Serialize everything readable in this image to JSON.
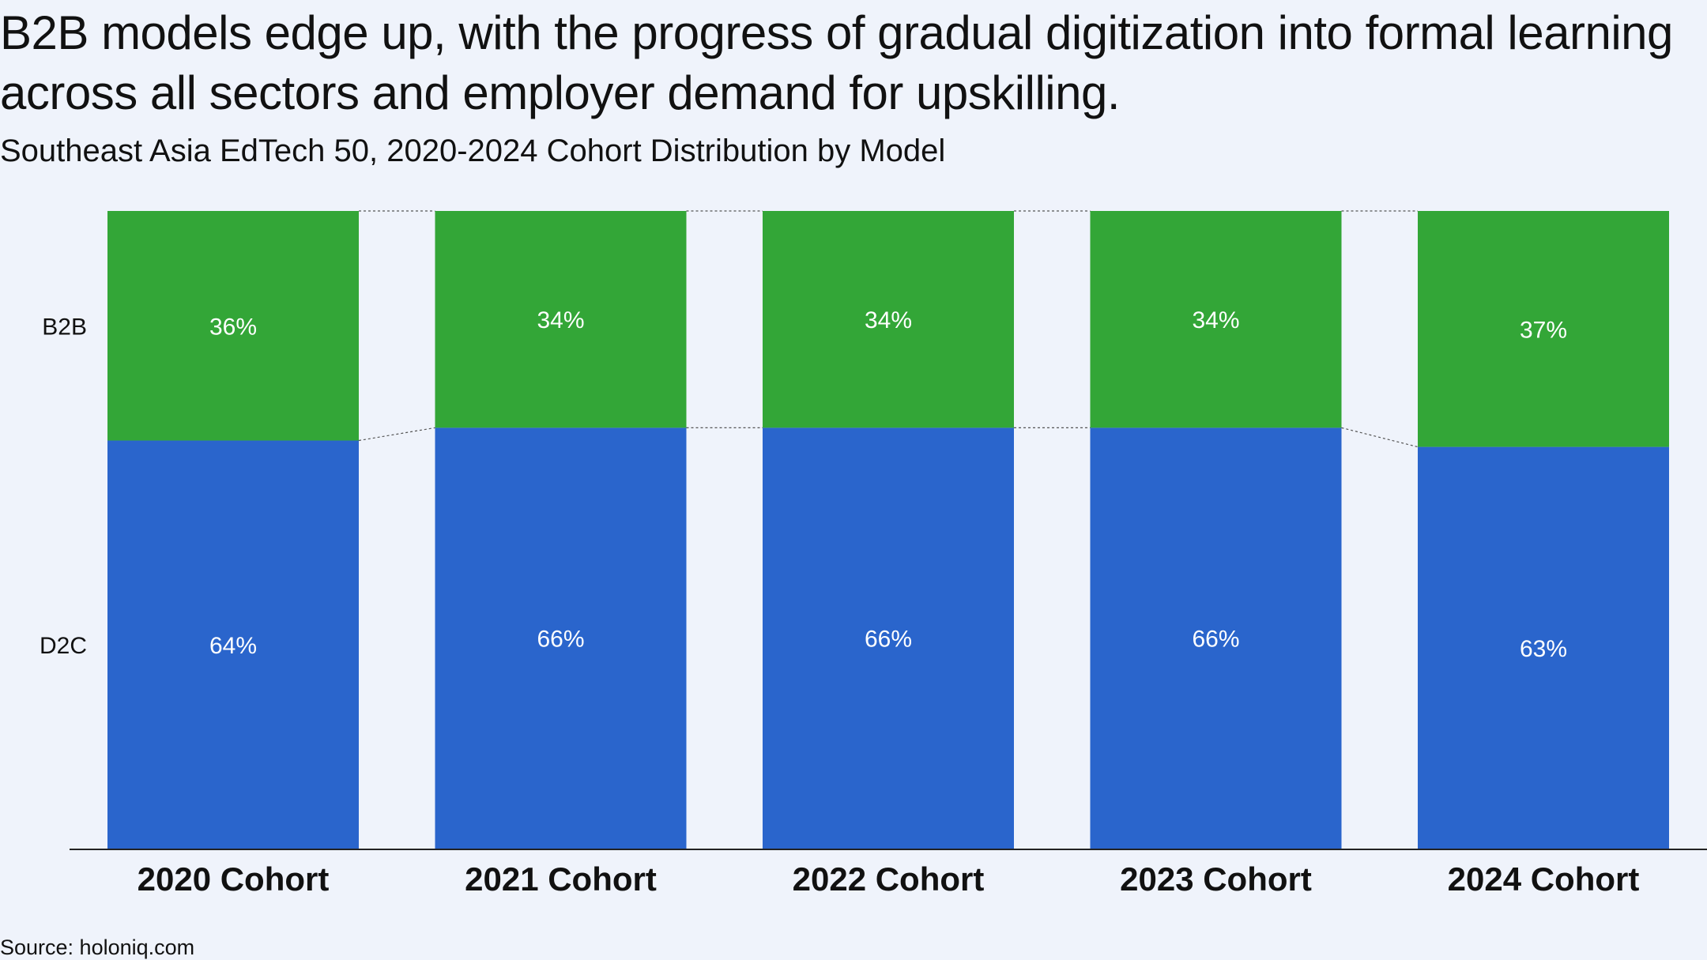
{
  "title": "B2B models edge up, with the progress of gradual digitization into formal learning across all sectors and employer demand for upskilling.",
  "subtitle": "Southeast Asia EdTech 50, 2020-2024 Cohort Distribution by Model",
  "source": "Source: holoniq.com",
  "chart_data": {
    "type": "bar",
    "stacked": true,
    "normalized": true,
    "categories": [
      "2020 Cohort",
      "2021 Cohort",
      "2022 Cohort",
      "2023 Cohort",
      "2024 Cohort"
    ],
    "series": [
      {
        "name": "D2C",
        "values": [
          64,
          66,
          66,
          66,
          63
        ],
        "labels": [
          "64%",
          "66%",
          "66%",
          "66%",
          "63%"
        ],
        "color": "#2a65cc"
      },
      {
        "name": "B2B",
        "values": [
          36,
          34,
          34,
          34,
          37
        ],
        "labels": [
          "36%",
          "34%",
          "34%",
          "34%",
          "37%"
        ],
        "color": "#33a637"
      }
    ],
    "ylim": [
      0,
      100
    ],
    "grid": false,
    "connector_lines": true
  }
}
